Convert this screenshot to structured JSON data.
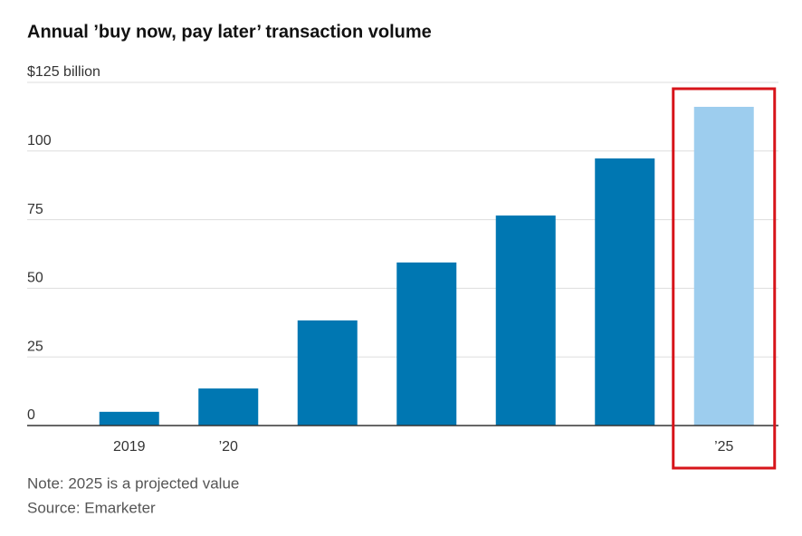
{
  "chart_data": {
    "type": "bar",
    "title": "Annual ’buy now, pay later’ transaction volume",
    "categories": [
      "2019",
      "’20",
      null,
      null,
      null,
      null,
      "’25"
    ],
    "values": [
      5,
      13.5,
      38.3,
      59.4,
      76.5,
      97.3,
      116.1
    ],
    "colors": [
      "#0077b2",
      "#0077b2",
      "#0077b2",
      "#0077b2",
      "#0077b2",
      "#0077b2",
      "#9dcdee"
    ],
    "ylim": [
      0,
      125
    ],
    "yticks": [
      0,
      25,
      50,
      75,
      100,
      {
        "value": 125,
        "label": "$125 billion"
      }
    ],
    "grid": true,
    "highlight_color": "#d7141a",
    "note": "Note: 2025 is a projected value",
    "source": "Source: Emarketer"
  }
}
